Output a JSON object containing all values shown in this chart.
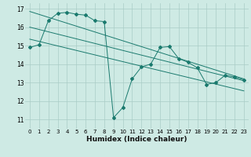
{
  "xlabel": "Humidex (Indice chaleur)",
  "bg_color": "#ceeae4",
  "grid_color": "#aaccc6",
  "line_color": "#1a7a6e",
  "xlim": [
    -0.5,
    23.5
  ],
  "ylim": [
    10.5,
    17.3
  ],
  "yticks": [
    11,
    12,
    13,
    14,
    15,
    16,
    17
  ],
  "xticks": [
    0,
    1,
    2,
    3,
    4,
    5,
    6,
    7,
    8,
    9,
    10,
    11,
    12,
    13,
    14,
    15,
    16,
    17,
    18,
    19,
    20,
    21,
    22,
    23
  ],
  "series1_x": [
    0,
    1,
    2,
    3,
    4,
    5,
    6,
    7,
    8,
    9,
    10,
    11,
    12,
    13,
    14,
    15,
    16,
    17,
    18,
    19,
    20,
    21,
    22,
    23
  ],
  "series1_y": [
    14.9,
    15.05,
    16.35,
    16.75,
    16.8,
    16.7,
    16.65,
    16.35,
    16.3,
    11.1,
    11.65,
    13.2,
    13.85,
    14.0,
    14.9,
    14.95,
    14.3,
    14.1,
    13.8,
    12.9,
    13.0,
    13.4,
    13.3,
    13.15
  ],
  "series2_x": [
    0,
    23
  ],
  "series2_y": [
    16.85,
    13.2
  ],
  "series3_x": [
    0,
    23
  ],
  "series3_y": [
    16.0,
    13.1
  ],
  "series4_x": [
    0,
    23
  ],
  "series4_y": [
    15.35,
    12.55
  ]
}
